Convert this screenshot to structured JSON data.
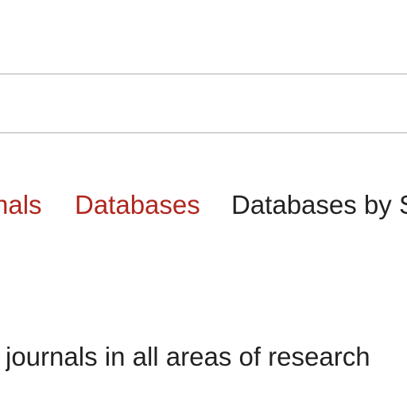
{
  "nav": {
    "items": [
      {
        "label": "nals",
        "color": "#b1261e"
      },
      {
        "label": "Databases",
        "color": "#b1261e"
      },
      {
        "label": "Databases by S",
        "color": "#222222"
      }
    ]
  },
  "main": {
    "description": "journals in all areas of research"
  }
}
